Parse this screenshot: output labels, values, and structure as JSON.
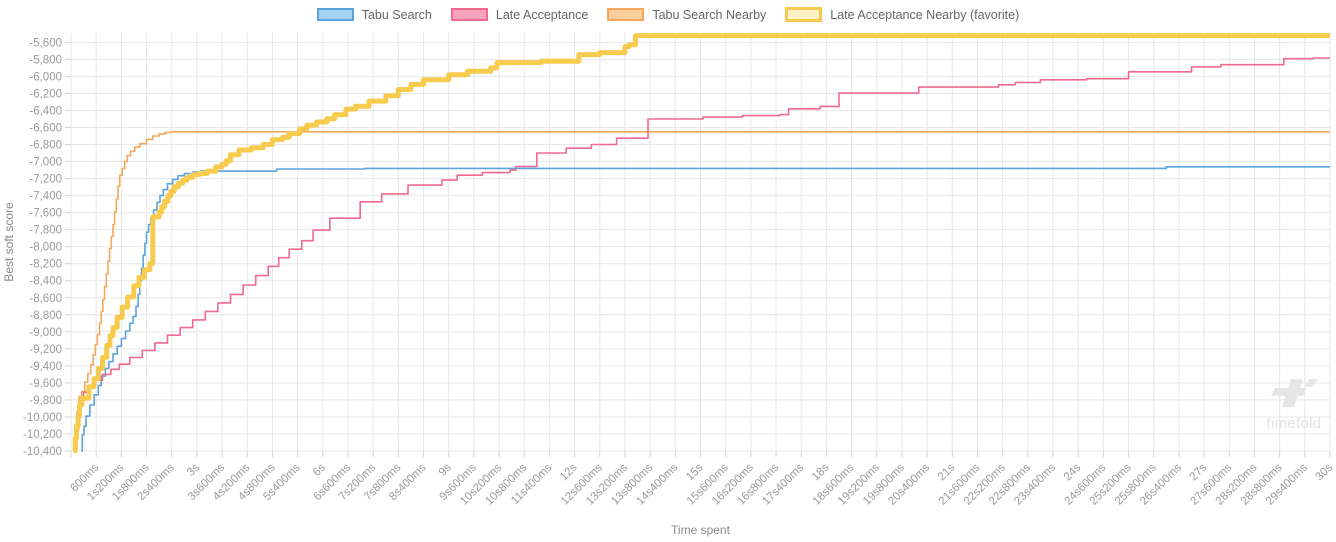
{
  "legend": {
    "items": [
      {
        "label": "Tabu Search",
        "fill": "#a6d2f2",
        "stroke": "#5ba3dc",
        "thick": false
      },
      {
        "label": "Late Acceptance",
        "fill": "#f7a3bd",
        "stroke": "#f1698e",
        "thick": false
      },
      {
        "label": "Tabu Search Nearby",
        "fill": "#fbce9d",
        "stroke": "#f7a75c",
        "thick": false
      },
      {
        "label": "Late Acceptance Nearby (favorite)",
        "fill": "#fdf1c6",
        "stroke": "#f7cc4e",
        "thick": true
      }
    ]
  },
  "watermark": {
    "text": "timefold"
  },
  "chart_data": {
    "type": "line",
    "step": "after",
    "title": "",
    "xlabel": "Time spent",
    "ylabel": "Best soft score",
    "grid": true,
    "legend_position": "top",
    "grid_color": "#e7e7e7",
    "tick_color": "#d4d4d4",
    "tick_text_color": "#9a9a9a",
    "legend_text_color": "#666666",
    "xlim_seconds": [
      0,
      30
    ],
    "ylim": [
      -10400,
      -5490
    ],
    "x_tick_interval_s": 0.6,
    "x_tick_labels": [
      "600ms",
      "1s200ms",
      "1s800ms",
      "2s400ms",
      "3s",
      "3s600ms",
      "4s200ms",
      "4s800ms",
      "5s400ms",
      "6s",
      "6s600ms",
      "7s200ms",
      "7s800ms",
      "8s400ms",
      "9s",
      "9s600ms",
      "10s200ms",
      "10s800ms",
      "11s400ms",
      "12s",
      "12s600ms",
      "13s200ms",
      "13s800ms",
      "14s400ms",
      "15s",
      "15s600ms",
      "16s200ms",
      "16s800ms",
      "17s400ms",
      "18s",
      "18s600ms",
      "19s200ms",
      "19s800ms",
      "20s400ms",
      "21s",
      "21s600ms",
      "22s200ms",
      "22s800ms",
      "23s400ms",
      "24s",
      "24s600ms",
      "25s200ms",
      "25s800ms",
      "26s400ms",
      "27s",
      "27s600ms",
      "28s200ms",
      "28s800ms",
      "29s400ms",
      "30s"
    ],
    "y_tick_start": -5600,
    "y_tick_step": -200,
    "y_tick_labels": [
      "-5,600",
      "-5,800",
      "-6,000",
      "-6,200",
      "-6,400",
      "-6,600",
      "-6,800",
      "-7,000",
      "-7,200",
      "-7,400",
      "-7,600",
      "-7,800",
      "-8,000",
      "-8,200",
      "-8,400",
      "-8,600",
      "-8,800",
      "-9,000",
      "-9,200",
      "-9,400",
      "-9,600",
      "-9,800",
      "-10,000",
      "-10,200",
      "-10,400"
    ],
    "series": [
      {
        "name": "Tabu Search",
        "color": "#5ba3dc",
        "width": 1.6,
        "points": [
          [
            0.24,
            -10400
          ],
          [
            0.27,
            -10210
          ],
          [
            0.31,
            -10110
          ],
          [
            0.36,
            -9990
          ],
          [
            0.45,
            -9860
          ],
          [
            0.55,
            -9740
          ],
          [
            0.65,
            -9630
          ],
          [
            0.72,
            -9520
          ],
          [
            0.82,
            -9430
          ],
          [
            0.9,
            -9350
          ],
          [
            1.0,
            -9260
          ],
          [
            1.1,
            -9170
          ],
          [
            1.2,
            -9080
          ],
          [
            1.3,
            -8990
          ],
          [
            1.4,
            -8900
          ],
          [
            1.48,
            -8820
          ],
          [
            1.55,
            -8700
          ],
          [
            1.6,
            -8560
          ],
          [
            1.64,
            -8400
          ],
          [
            1.68,
            -8250
          ],
          [
            1.72,
            -8100
          ],
          [
            1.76,
            -7960
          ],
          [
            1.8,
            -7830
          ],
          [
            1.85,
            -7740
          ],
          [
            1.9,
            -7660
          ],
          [
            1.97,
            -7570
          ],
          [
            2.05,
            -7480
          ],
          [
            2.12,
            -7400
          ],
          [
            2.2,
            -7330
          ],
          [
            2.3,
            -7260
          ],
          [
            2.42,
            -7210
          ],
          [
            2.55,
            -7166
          ],
          [
            2.7,
            -7140
          ],
          [
            2.9,
            -7124
          ],
          [
            3.1,
            -7112
          ],
          [
            4.9,
            -7088
          ],
          [
            7.0,
            -7080
          ],
          [
            26.1,
            -7062
          ],
          [
            30,
            -7062
          ]
        ]
      },
      {
        "name": "Late Acceptance",
        "color": "#f1698e",
        "width": 1.6,
        "points": [
          [
            0.1,
            -10380
          ],
          [
            0.14,
            -10150
          ],
          [
            0.18,
            -9970
          ],
          [
            0.24,
            -9830
          ],
          [
            0.3,
            -9710
          ],
          [
            0.4,
            -9630
          ],
          [
            0.55,
            -9570
          ],
          [
            0.75,
            -9500
          ],
          [
            0.95,
            -9440
          ],
          [
            1.15,
            -9380
          ],
          [
            1.4,
            -9300
          ],
          [
            1.7,
            -9220
          ],
          [
            2.0,
            -9130
          ],
          [
            2.3,
            -9040
          ],
          [
            2.6,
            -8950
          ],
          [
            2.9,
            -8860
          ],
          [
            3.2,
            -8760
          ],
          [
            3.5,
            -8660
          ],
          [
            3.8,
            -8560
          ],
          [
            4.1,
            -8450
          ],
          [
            4.4,
            -8340
          ],
          [
            4.7,
            -8230
          ],
          [
            4.95,
            -8130
          ],
          [
            5.2,
            -8030
          ],
          [
            5.5,
            -7930
          ],
          [
            5.77,
            -7805
          ],
          [
            6.17,
            -7666
          ],
          [
            6.89,
            -7473
          ],
          [
            7.4,
            -7380
          ],
          [
            8.03,
            -7277
          ],
          [
            8.84,
            -7218
          ],
          [
            9.2,
            -7160
          ],
          [
            9.8,
            -7130
          ],
          [
            10.46,
            -7100
          ],
          [
            10.6,
            -7058
          ],
          [
            11.1,
            -6900
          ],
          [
            11.8,
            -6843
          ],
          [
            12.4,
            -6800
          ],
          [
            13.0,
            -6726
          ],
          [
            13.75,
            -6500
          ],
          [
            15.06,
            -6478
          ],
          [
            16.0,
            -6460
          ],
          [
            16.9,
            -6448
          ],
          [
            17.1,
            -6380
          ],
          [
            17.85,
            -6352
          ],
          [
            18.3,
            -6196
          ],
          [
            20.2,
            -6125
          ],
          [
            22.1,
            -6098
          ],
          [
            22.5,
            -6071
          ],
          [
            23.1,
            -6040
          ],
          [
            24.2,
            -6027
          ],
          [
            25.2,
            -5946
          ],
          [
            26.7,
            -5888
          ],
          [
            27.4,
            -5862
          ],
          [
            28.9,
            -5792
          ],
          [
            29.6,
            -5784
          ],
          [
            30,
            -5784
          ]
        ]
      },
      {
        "name": "Tabu Search Nearby",
        "color": "#f7a75c",
        "width": 1.6,
        "points": [
          [
            0.07,
            -10380
          ],
          [
            0.1,
            -10150
          ],
          [
            0.14,
            -9940
          ],
          [
            0.19,
            -9760
          ],
          [
            0.26,
            -9700
          ],
          [
            0.33,
            -9590
          ],
          [
            0.4,
            -9490
          ],
          [
            0.47,
            -9390
          ],
          [
            0.53,
            -9270
          ],
          [
            0.58,
            -9150
          ],
          [
            0.63,
            -9030
          ],
          [
            0.68,
            -8900
          ],
          [
            0.72,
            -8760
          ],
          [
            0.76,
            -8620
          ],
          [
            0.8,
            -8470
          ],
          [
            0.84,
            -8320
          ],
          [
            0.88,
            -8170
          ],
          [
            0.92,
            -8020
          ],
          [
            0.96,
            -7880
          ],
          [
            1.0,
            -7740
          ],
          [
            1.04,
            -7590
          ],
          [
            1.08,
            -7440
          ],
          [
            1.12,
            -7290
          ],
          [
            1.16,
            -7160
          ],
          [
            1.22,
            -7080
          ],
          [
            1.28,
            -7000
          ],
          [
            1.34,
            -6930
          ],
          [
            1.42,
            -6880
          ],
          [
            1.52,
            -6830
          ],
          [
            1.64,
            -6790
          ],
          [
            1.8,
            -6740
          ],
          [
            1.95,
            -6700
          ],
          [
            2.1,
            -6675
          ],
          [
            2.25,
            -6658
          ],
          [
            2.4,
            -6650
          ],
          [
            30,
            -6650
          ]
        ]
      },
      {
        "name": "Late Acceptance Nearby (favorite)",
        "color": "#f7cc4e",
        "width": 5,
        "points": [
          [
            0.07,
            -10400
          ],
          [
            0.1,
            -10250
          ],
          [
            0.13,
            -10110
          ],
          [
            0.17,
            -9990
          ],
          [
            0.2,
            -9860
          ],
          [
            0.26,
            -9780
          ],
          [
            0.43,
            -9645
          ],
          [
            0.55,
            -9550
          ],
          [
            0.65,
            -9430
          ],
          [
            0.75,
            -9300
          ],
          [
            0.85,
            -9160
          ],
          [
            0.93,
            -9045
          ],
          [
            1.0,
            -8950
          ],
          [
            1.1,
            -8830
          ],
          [
            1.22,
            -8710
          ],
          [
            1.35,
            -8590
          ],
          [
            1.5,
            -8460
          ],
          [
            1.62,
            -8360
          ],
          [
            1.75,
            -8270
          ],
          [
            1.88,
            -8200
          ],
          [
            1.95,
            -7650
          ],
          [
            2.1,
            -7592
          ],
          [
            2.16,
            -7532
          ],
          [
            2.23,
            -7466
          ],
          [
            2.31,
            -7400
          ],
          [
            2.38,
            -7350
          ],
          [
            2.46,
            -7296
          ],
          [
            2.56,
            -7256
          ],
          [
            2.66,
            -7222
          ],
          [
            2.76,
            -7186
          ],
          [
            2.9,
            -7156
          ],
          [
            3.05,
            -7140
          ],
          [
            3.25,
            -7112
          ],
          [
            3.45,
            -7064
          ],
          [
            3.6,
            -7032
          ],
          [
            3.7,
            -6990
          ],
          [
            3.8,
            -6920
          ],
          [
            4.0,
            -6864
          ],
          [
            4.3,
            -6838
          ],
          [
            4.58,
            -6800
          ],
          [
            4.8,
            -6742
          ],
          [
            5.05,
            -6714
          ],
          [
            5.2,
            -6672
          ],
          [
            5.45,
            -6616
          ],
          [
            5.62,
            -6572
          ],
          [
            5.85,
            -6536
          ],
          [
            6.1,
            -6498
          ],
          [
            6.28,
            -6448
          ],
          [
            6.55,
            -6384
          ],
          [
            6.78,
            -6350
          ],
          [
            7.1,
            -6290
          ],
          [
            7.5,
            -6228
          ],
          [
            7.8,
            -6154
          ],
          [
            8.1,
            -6094
          ],
          [
            8.4,
            -6038
          ],
          [
            9.0,
            -5980
          ],
          [
            9.45,
            -5940
          ],
          [
            10.0,
            -5900
          ],
          [
            10.15,
            -5838
          ],
          [
            11.2,
            -5822
          ],
          [
            12.1,
            -5744
          ],
          [
            12.6,
            -5720
          ],
          [
            13.2,
            -5650
          ],
          [
            13.3,
            -5627
          ],
          [
            13.45,
            -5520
          ],
          [
            30,
            -5520
          ]
        ]
      }
    ]
  }
}
